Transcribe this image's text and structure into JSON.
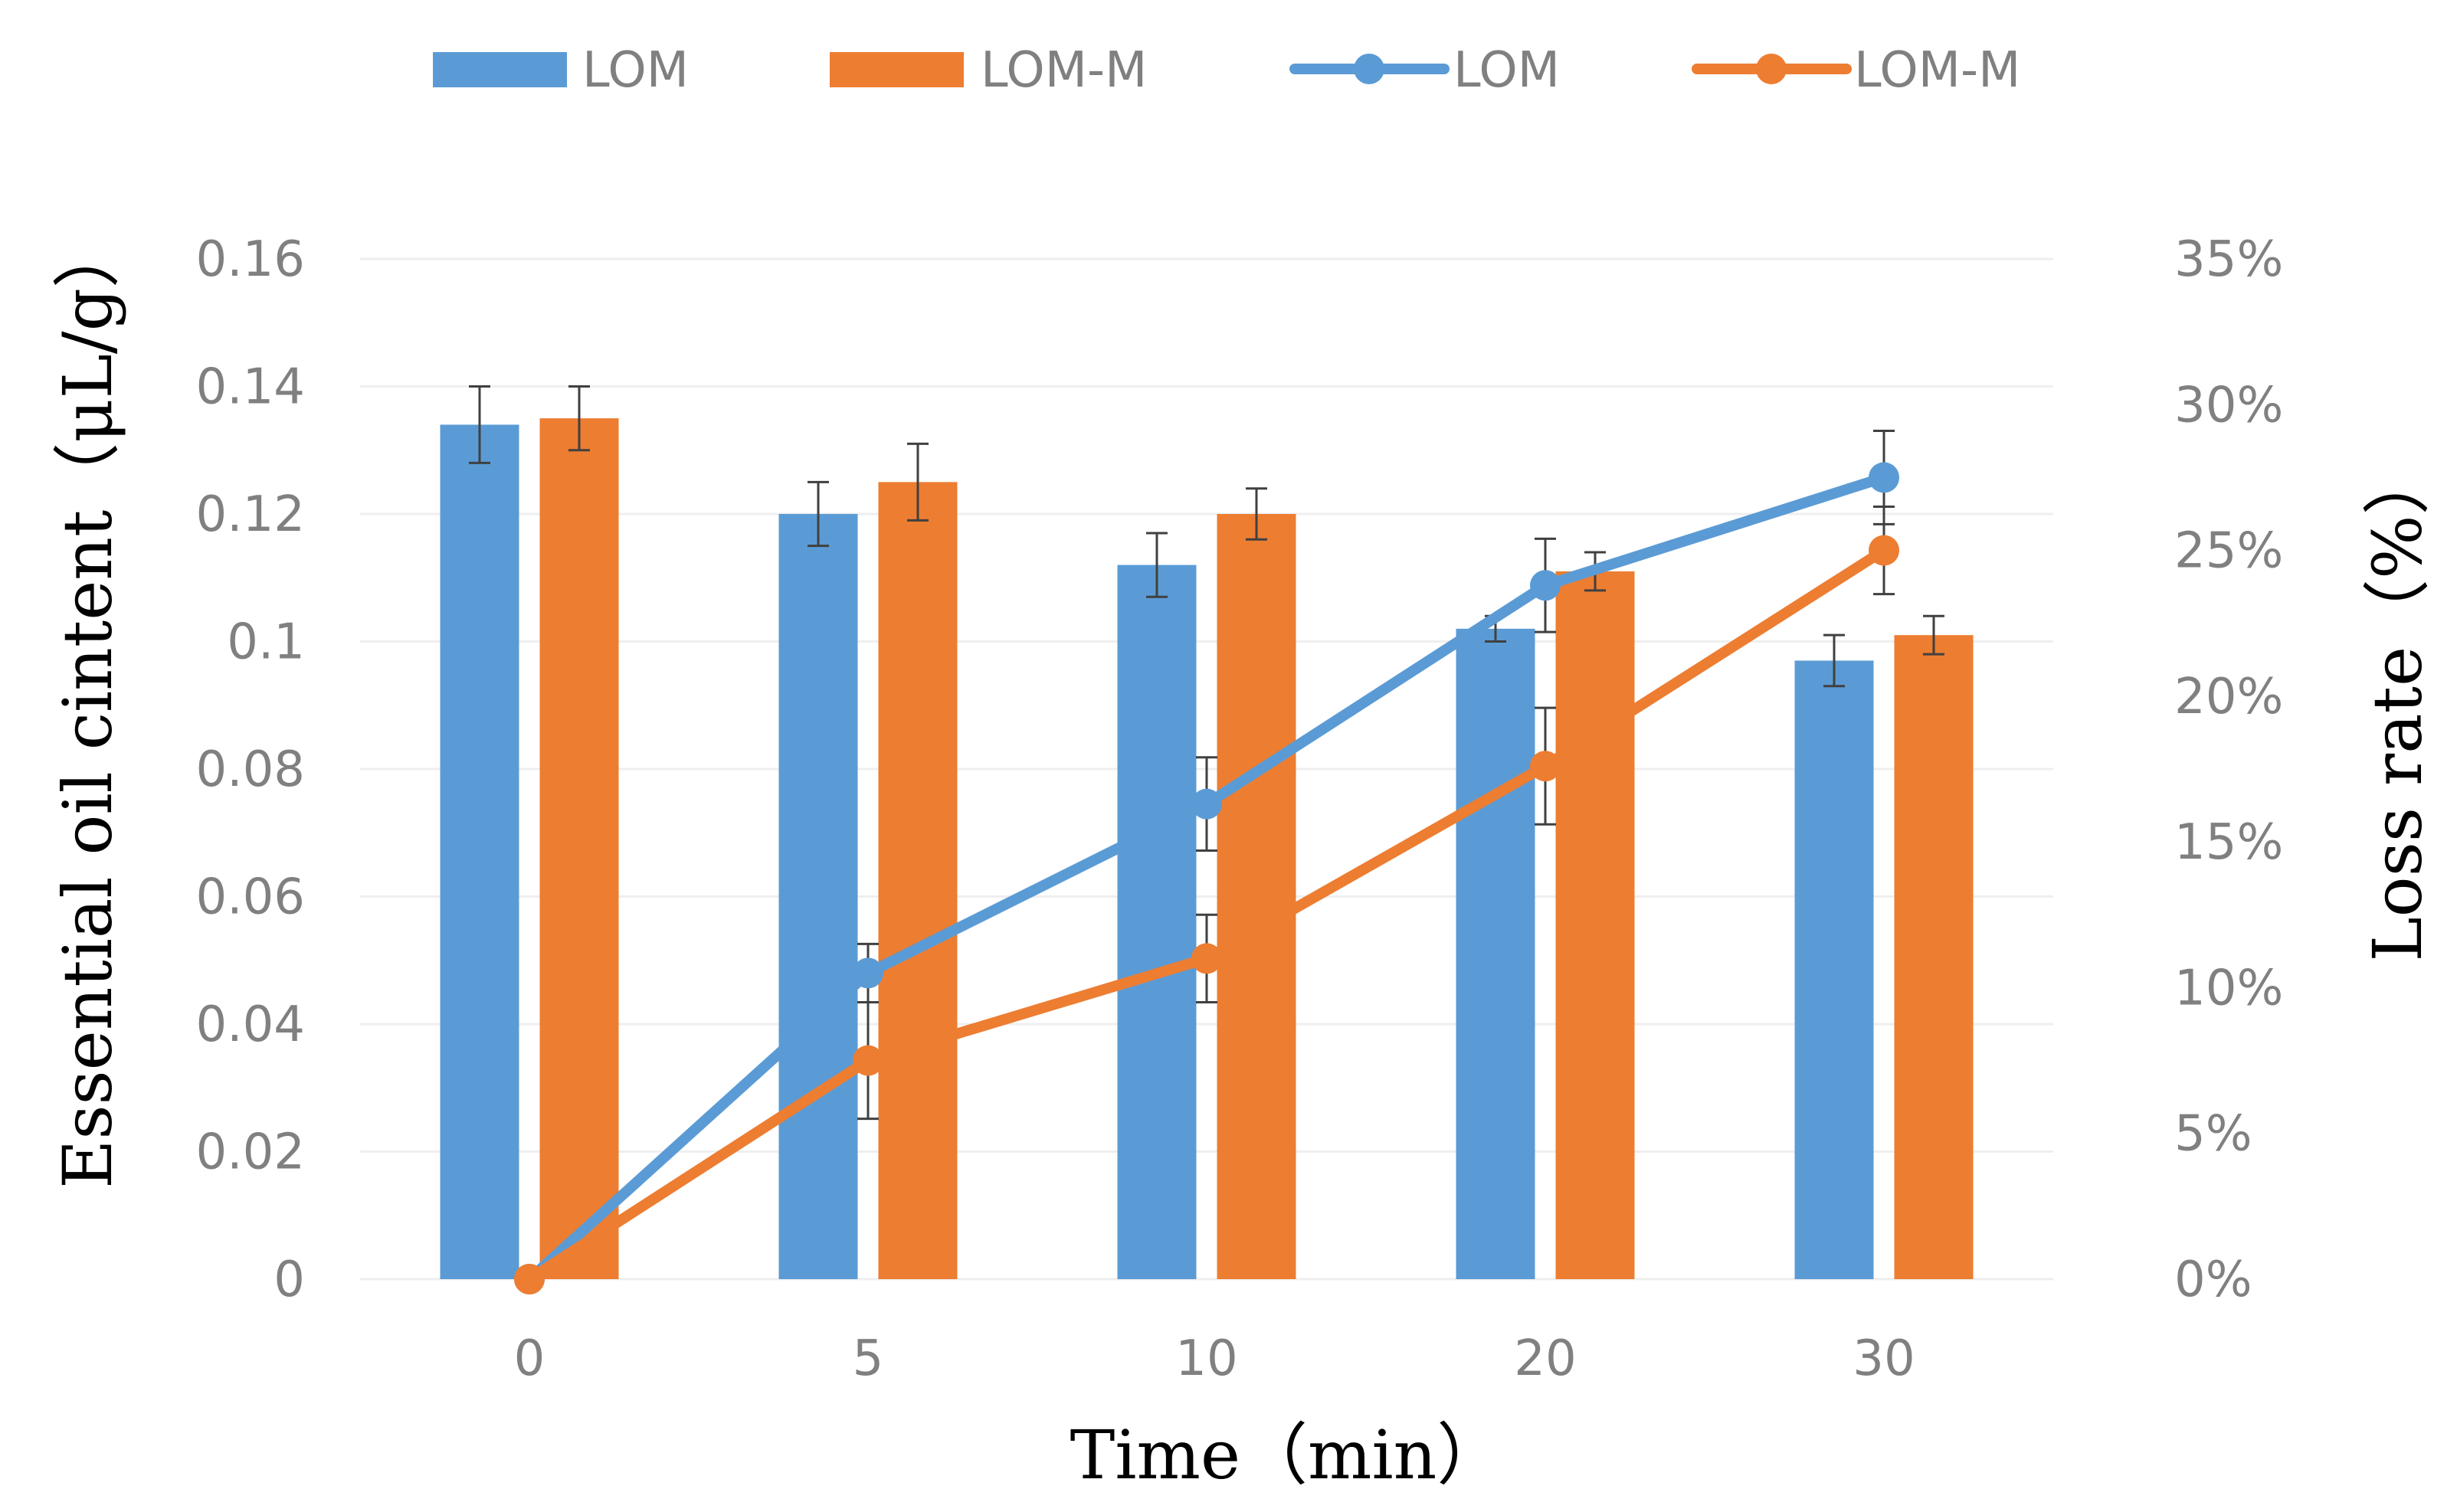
{
  "chart_data": {
    "type": "bar+line",
    "categories": [
      "0",
      "5",
      "10",
      "20",
      "30"
    ],
    "xlabel": "Time（min）",
    "ylabel_left": "Essential oil cintent（μL/g）",
    "ylabel_right": "Loss rate（%）",
    "ylim_left": [
      0,
      0.16
    ],
    "ylim_right": [
      0,
      35
    ],
    "left_ticks": [
      "0",
      "0.02",
      "0.04",
      "0.06",
      "0.08",
      "0.1",
      "0.12",
      "0.14",
      "0.16"
    ],
    "right_ticks": [
      "0%",
      "5%",
      "10%",
      "15%",
      "20%",
      "25%",
      "30%",
      "35%"
    ],
    "grid": true,
    "legend_position": "top",
    "series": [
      {
        "name": "LOM",
        "kind": "bar",
        "axis": "left",
        "color": "#5b9bd5",
        "values": [
          0.134,
          0.12,
          0.112,
          0.102,
          0.097
        ],
        "errors": [
          0.006,
          0.005,
          0.005,
          0.002,
          0.004
        ]
      },
      {
        "name": "LOM-M",
        "kind": "bar",
        "axis": "left",
        "color": "#ed7d31",
        "values": [
          0.135,
          0.125,
          0.12,
          0.111,
          0.101
        ],
        "errors": [
          0.005,
          0.006,
          0.004,
          0.003,
          0.003
        ]
      },
      {
        "name": "LOM",
        "kind": "line",
        "axis": "right",
        "color": "#5b9bd5",
        "values": [
          0,
          10.5,
          16.3,
          23.8,
          27.5
        ],
        "errors": [
          0,
          1.0,
          1.6,
          1.6,
          1.6
        ]
      },
      {
        "name": "LOM-M",
        "kind": "line",
        "axis": "right",
        "color": "#ed7d31",
        "values": [
          0,
          7.5,
          11.0,
          17.6,
          25.0
        ],
        "errors": [
          0,
          2.0,
          1.5,
          2.0,
          1.5
        ]
      }
    ]
  }
}
